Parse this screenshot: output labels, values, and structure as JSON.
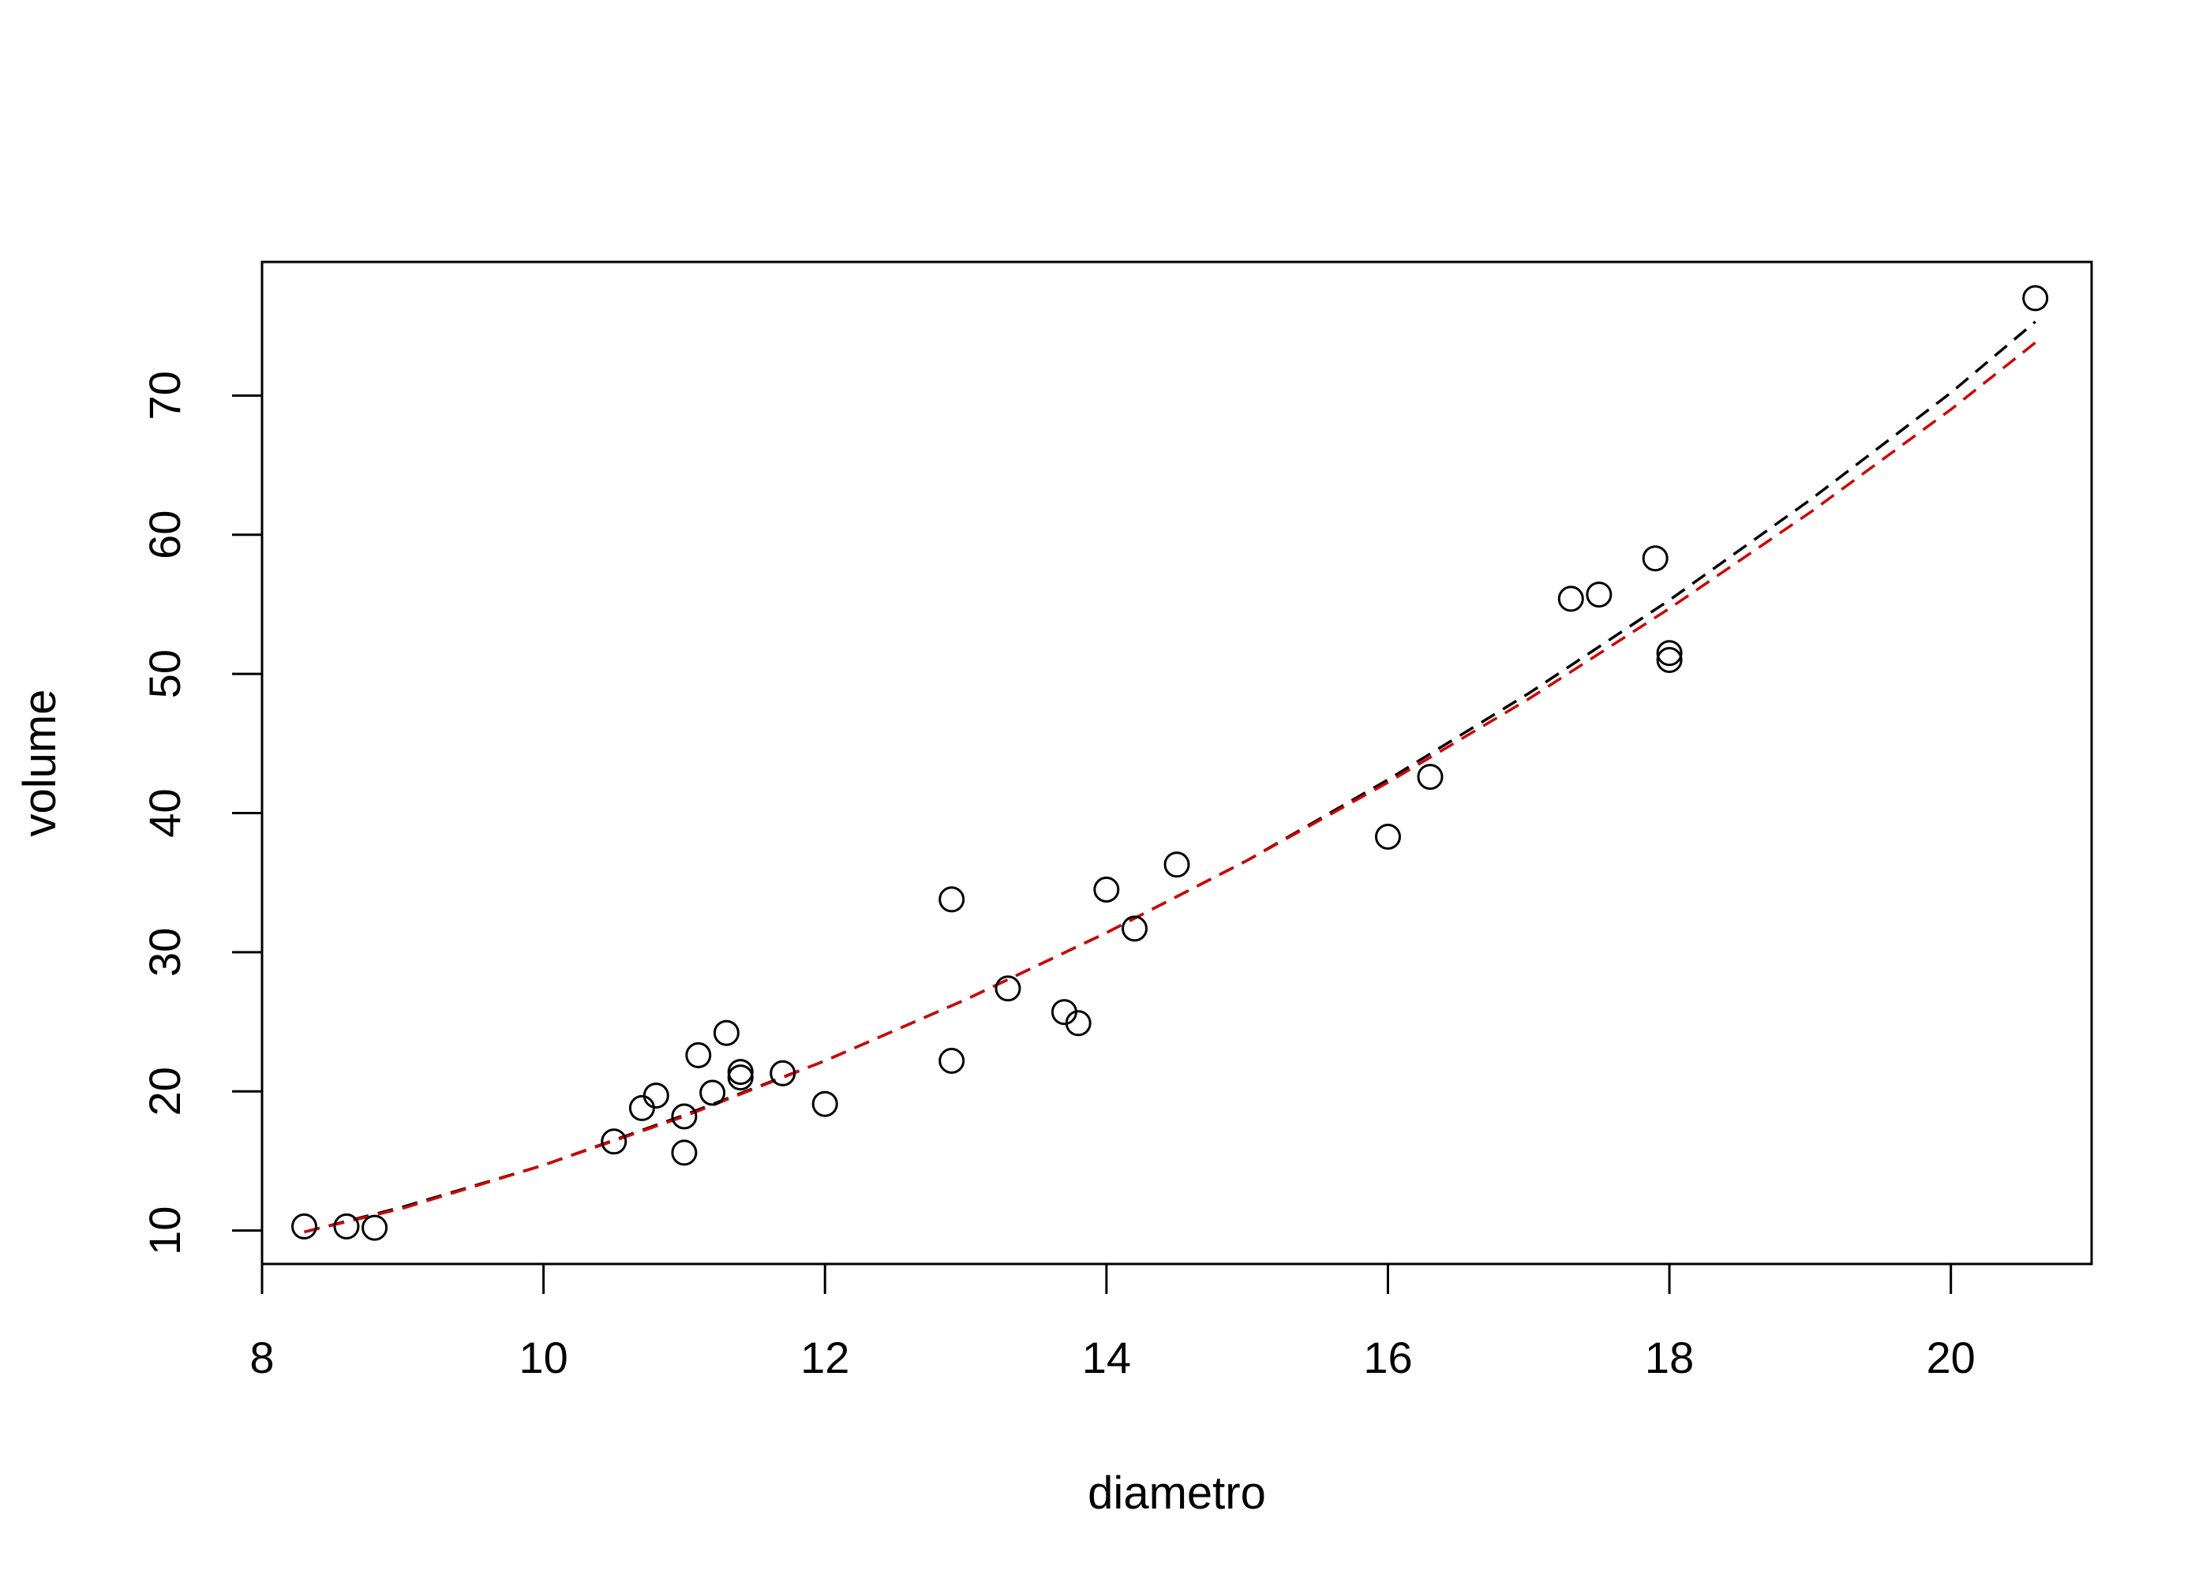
{
  "chart_data": {
    "type": "scatter",
    "title": "",
    "xlabel": "diametro",
    "ylabel": "volume",
    "xlim": [
      8,
      21
    ],
    "ylim": [
      7.6,
      79.6
    ],
    "x_ticks": [
      8,
      10,
      12,
      14,
      16,
      18,
      20
    ],
    "y_ticks": [
      10,
      20,
      30,
      40,
      50,
      60,
      70
    ],
    "grid": false,
    "legend": "none",
    "points": {
      "x": [
        8.3,
        8.6,
        8.8,
        10.5,
        10.7,
        10.8,
        11.0,
        11.0,
        11.1,
        11.2,
        11.3,
        11.4,
        11.4,
        11.7,
        12.0,
        12.9,
        12.9,
        13.3,
        13.7,
        13.8,
        14.0,
        14.2,
        14.5,
        16.0,
        16.3,
        17.3,
        17.5,
        17.9,
        18.0,
        18.0,
        20.6
      ],
      "y": [
        10.3,
        10.3,
        10.2,
        16.4,
        18.8,
        19.7,
        15.6,
        18.2,
        22.6,
        19.9,
        24.2,
        21.0,
        21.4,
        21.3,
        19.1,
        22.2,
        33.8,
        27.4,
        25.7,
        24.9,
        34.5,
        31.7,
        36.3,
        38.3,
        42.6,
        55.4,
        55.7,
        58.3,
        51.5,
        51.0,
        77.0
      ]
    },
    "series": [
      {
        "style": "dashed",
        "color": "#000000",
        "x": [
          8.3,
          9,
          10,
          11,
          12,
          13,
          14,
          15,
          16,
          17,
          18,
          19,
          20,
          20.6
        ],
        "y": [
          9.9,
          11.7,
          14.7,
          18.3,
          22.2,
          26.6,
          31.4,
          36.6,
          42.4,
          48.6,
          55.3,
          62.5,
          70.2,
          75.3
        ]
      },
      {
        "style": "dashed",
        "color": "#d40000",
        "x": [
          8.3,
          9,
          10,
          11,
          12,
          13,
          14,
          15,
          16,
          17,
          18,
          19,
          20,
          20.6
        ],
        "y": [
          9.9,
          11.6,
          14.7,
          18.2,
          22.2,
          26.6,
          31.4,
          36.6,
          42.2,
          48.2,
          54.7,
          61.6,
          69.0,
          73.8
        ]
      }
    ]
  }
}
